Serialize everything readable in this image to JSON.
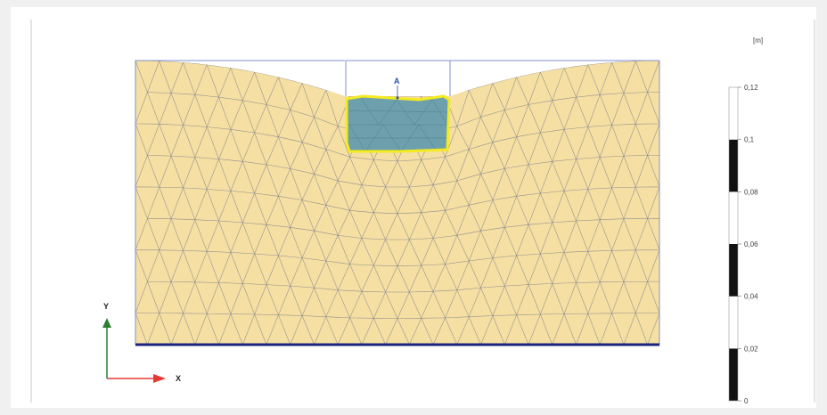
{
  "point_label": "A",
  "axes": {
    "x_label": "X",
    "y_label": "Y"
  },
  "scale": {
    "unit": "[m]",
    "ticks": [
      "0",
      "0,02",
      "0,04",
      "0,06",
      "0,08",
      "0,1",
      "0,12"
    ],
    "segments": [
      "black",
      "white",
      "black",
      "white",
      "black",
      "white"
    ]
  },
  "colors": {
    "soil": "#f5dfa2",
    "mesh": "#8f8f8f",
    "excavation_fill": "#6e9fad",
    "excavation_outline": "#f3ea1f",
    "boundary": "#8092cf",
    "base": "#1a237e",
    "axis_x": "#e53935",
    "axis_y": "#2e7d32",
    "background": "#ffffff"
  }
}
